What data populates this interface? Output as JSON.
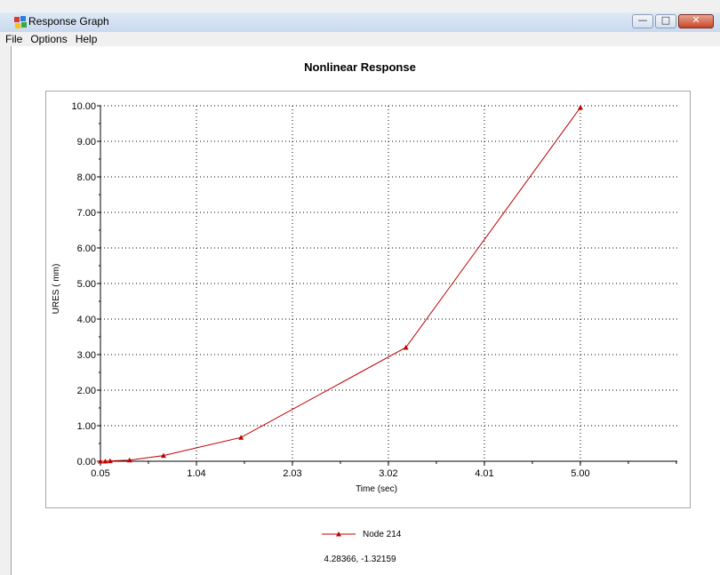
{
  "window": {
    "title": "Response Graph",
    "icon": "app-colorful-icon"
  },
  "window_controls": {
    "minimize_glyph": "—",
    "maximize_glyph": "□",
    "close_glyph": "✕"
  },
  "menu": {
    "items": [
      {
        "label": "File"
      },
      {
        "label": "Options"
      },
      {
        "label": "Help"
      }
    ]
  },
  "coordinate_readout": "4.28366, -1.32159",
  "colors": {
    "series": "#c00000",
    "grid": "#000000",
    "axis": "#000000"
  },
  "chart_data": {
    "type": "line",
    "title": "Nonlinear Response",
    "xlabel": "Time (sec)",
    "ylabel": "URES ( mm)",
    "xlim": [
      0.05,
      6.0
    ],
    "ylim": [
      0.0,
      10.0
    ],
    "x_ticks": [
      0.05,
      1.04,
      2.03,
      3.02,
      4.01,
      5.0
    ],
    "x_tick_labels": [
      "0.05",
      "1.04",
      "2.03",
      "3.02",
      "4.01",
      "5.00"
    ],
    "y_ticks": [
      0,
      1,
      2,
      3,
      4,
      5,
      6,
      7,
      8,
      9,
      10
    ],
    "y_tick_labels": [
      "0.00",
      "1.00",
      "2.00",
      "3.00",
      "4.00",
      "5.00",
      "6.00",
      "7.00",
      "8.00",
      "9.00",
      "10.00"
    ],
    "grid": true,
    "grid_style": "dotted",
    "legend_position": "bottom-center",
    "series": [
      {
        "name": "Node 214",
        "marker": "triangle",
        "x": [
          0.05,
          0.1,
          0.15,
          0.35,
          0.7,
          1.5,
          3.2,
          5.0
        ],
        "y": [
          0.0,
          0.0,
          0.01,
          0.03,
          0.16,
          0.67,
          3.2,
          9.95
        ]
      }
    ]
  }
}
